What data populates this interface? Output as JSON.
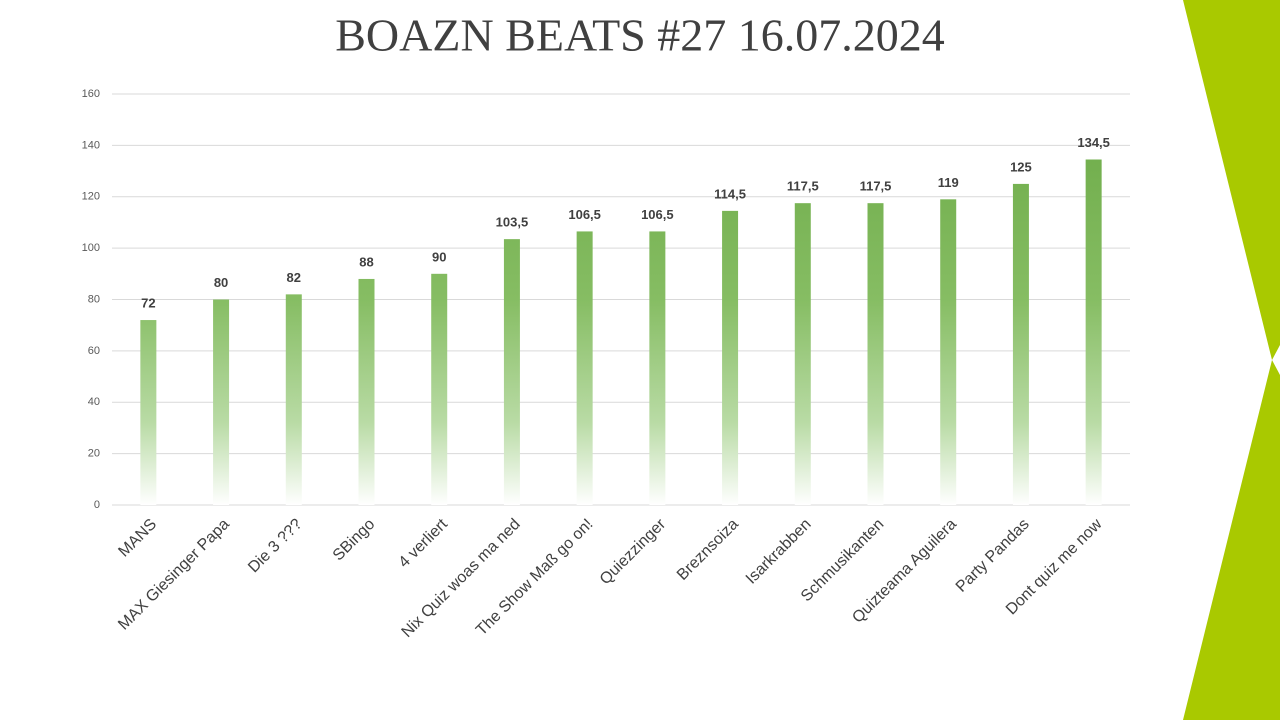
{
  "chart_data": {
    "type": "bar",
    "title": "BOAZN BEATS #27 16.07.2024",
    "categories": [
      "MANS",
      "MAX Giesinger Papa",
      "Die 3 ???",
      "SBingo",
      "4 verliert",
      "Nix Quiz woas ma ned",
      "The Show Maß go on!",
      "Quiezzinger",
      "Breznsoiza",
      "Isarkrabben",
      "Schmusikanten",
      "Quizteama Aguilera",
      "Party Pandas",
      "Dont quiz me now"
    ],
    "values": [
      72,
      80,
      82,
      88,
      90,
      103.5,
      106.5,
      106.5,
      114.5,
      117.5,
      117.5,
      119,
      125,
      134.5
    ],
    "value_labels": [
      "72",
      "80",
      "82",
      "88",
      "90",
      "103,5",
      "106,5",
      "106,5",
      "114,5",
      "117,5",
      "117,5",
      "119",
      "125",
      "134,5"
    ],
    "color": "#70ad47",
    "ylim": [
      0,
      160
    ],
    "yticks": [
      0,
      20,
      40,
      60,
      80,
      100,
      120,
      140,
      160
    ],
    "grid": true
  }
}
